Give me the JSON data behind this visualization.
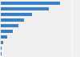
{
  "values": [
    1650,
    1340,
    870,
    640,
    490,
    330,
    190,
    75,
    30,
    12
  ],
  "bar_color": "#3A7EC6",
  "background_color": "#f0f0f0",
  "xlim": [
    0,
    2200
  ],
  "bar_height": 0.6,
  "figsize": [
    1.0,
    0.71
  ],
  "dpi": 100,
  "grid_color": "#ffffff",
  "grid_linewidth": 0.5
}
